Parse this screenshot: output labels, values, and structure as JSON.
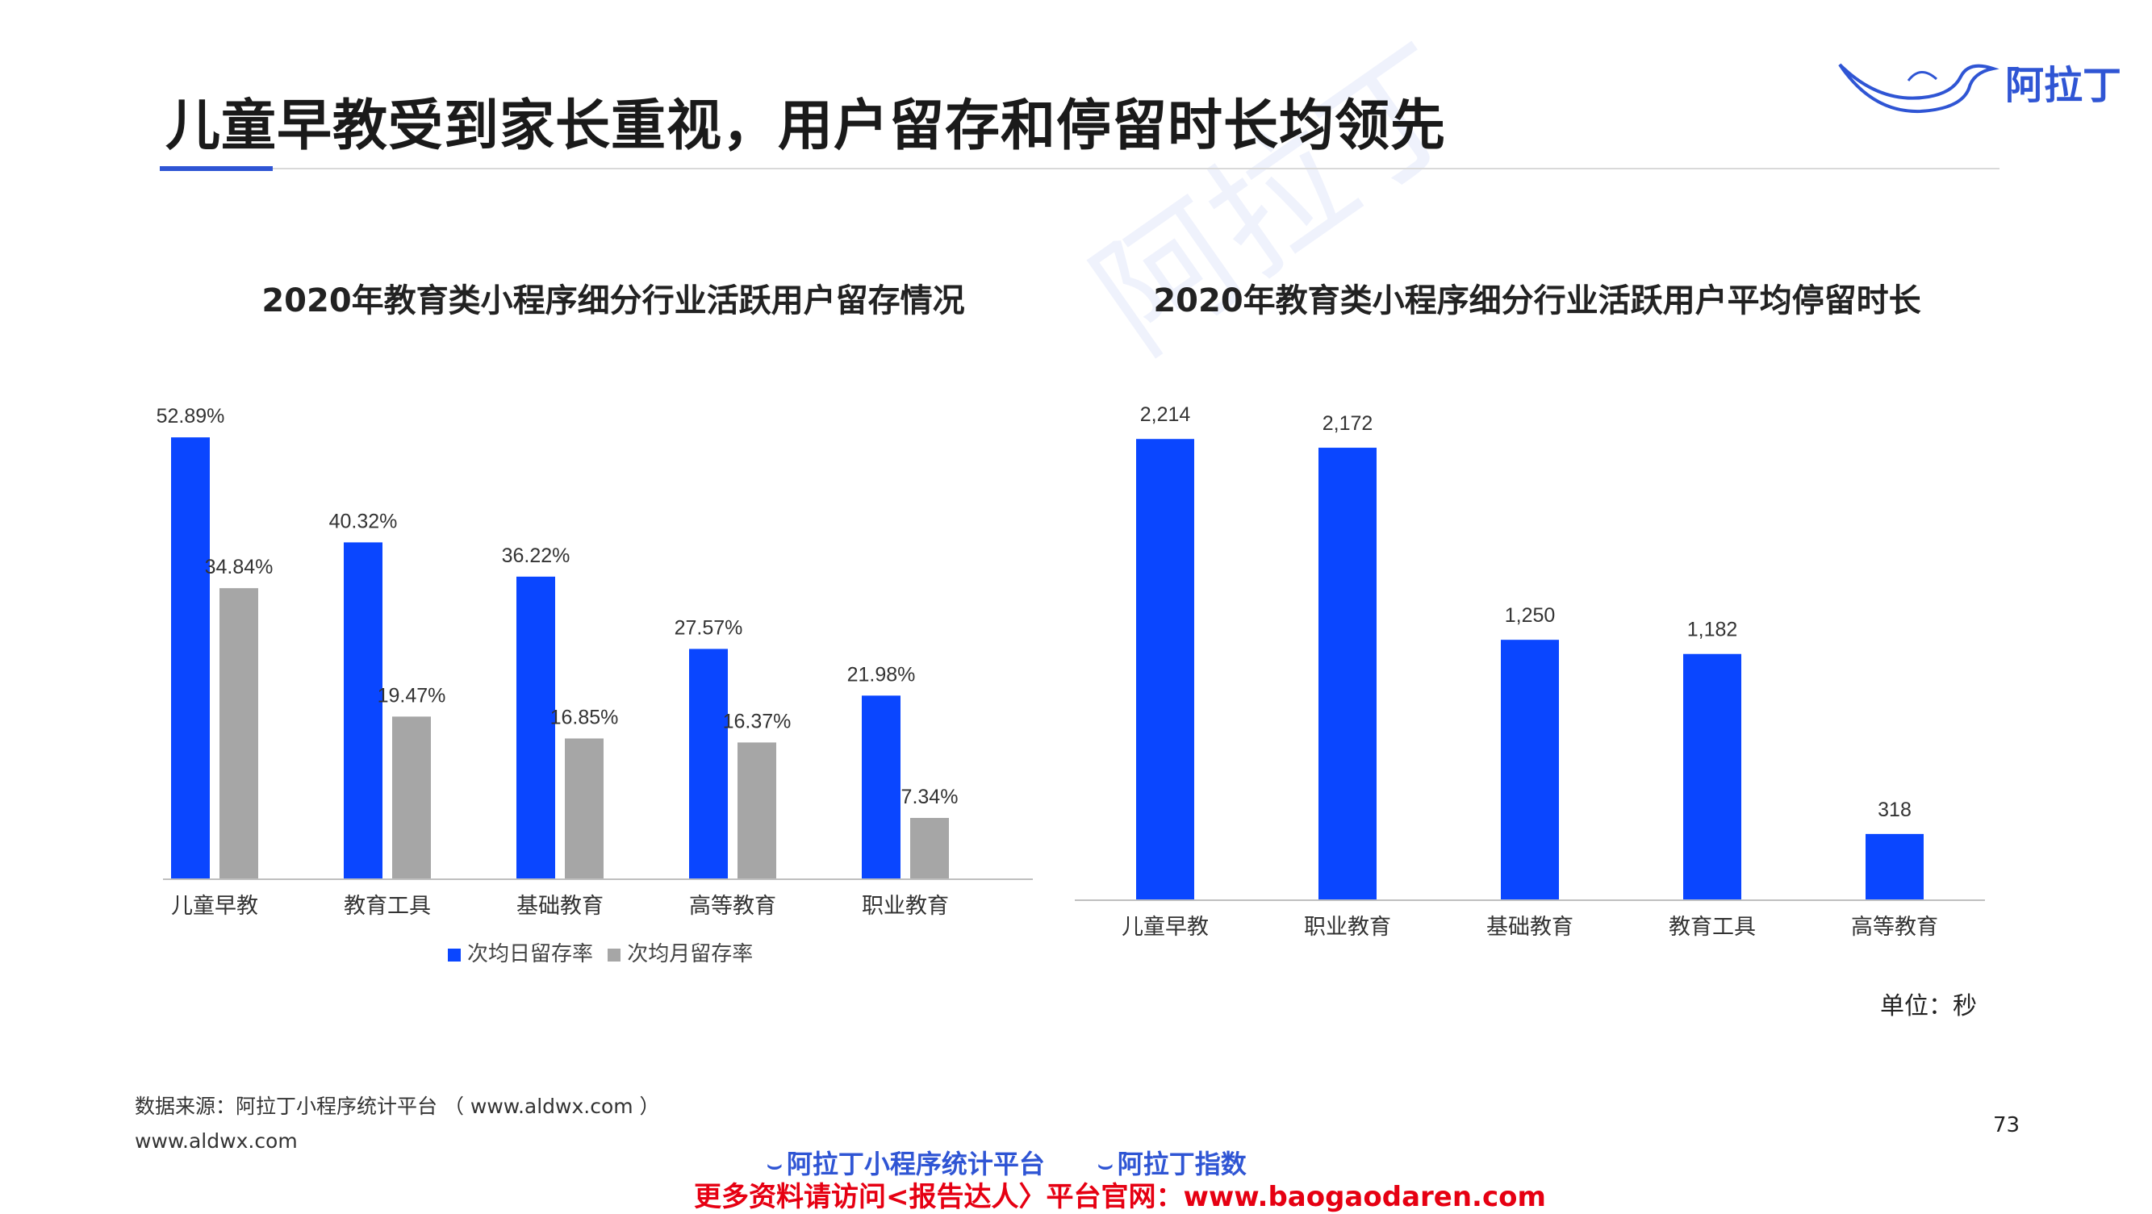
{
  "header": {
    "title": "儿童早教受到家长重视，用户留存和停留时长均领先",
    "logo_text": "阿拉丁",
    "accent_color": "#2f55d4"
  },
  "watermark": "阿拉丁",
  "chart_data": [
    {
      "type": "bar",
      "title": "2020年教育类小程序细分行业活跃用户留存情况",
      "categories": [
        "儿童早教",
        "教育工具",
        "基础教育",
        "高等教育",
        "职业教育"
      ],
      "series": [
        {
          "name": "次均日留存率",
          "values": [
            52.89,
            40.32,
            36.22,
            27.57,
            21.98
          ],
          "labels": [
            "52.89%",
            "40.32%",
            "36.22%",
            "27.57%",
            "21.98%"
          ],
          "color": "#0a46ff"
        },
        {
          "name": "次均月留存率",
          "values": [
            34.84,
            19.47,
            16.85,
            16.37,
            7.34
          ],
          "labels": [
            "34.84%",
            "19.47%",
            "16.85%",
            "16.37%",
            "7.34%"
          ],
          "color": "#a6a6a6"
        }
      ],
      "ylim": [
        0,
        56
      ],
      "grid": false,
      "legend": "bottom"
    },
    {
      "type": "bar",
      "title": "2020年教育类小程序细分行业活跃用户平均停留时长",
      "categories": [
        "儿童早教",
        "职业教育",
        "基础教育",
        "教育工具",
        "高等教育"
      ],
      "values": [
        2214,
        2172,
        1250,
        1182,
        318
      ],
      "labels": [
        "2,214",
        "2,172",
        "1,250",
        "1,182",
        "318"
      ],
      "color": "#0a46ff",
      "ylim": [
        0,
        2300
      ],
      "grid": false,
      "unit_label": "单位：秒"
    }
  ],
  "footer": {
    "source": "数据来源：阿拉丁小程序统计平台 （ www.aldwx.com ）",
    "site": "www.aldwx.com",
    "page_number": "73",
    "logo_left": "阿拉丁小程序统计平台",
    "logo_right": "阿拉丁指数",
    "promo": "更多资料请访问<报告达人〉平台官网：www.baogaodaren.com"
  }
}
